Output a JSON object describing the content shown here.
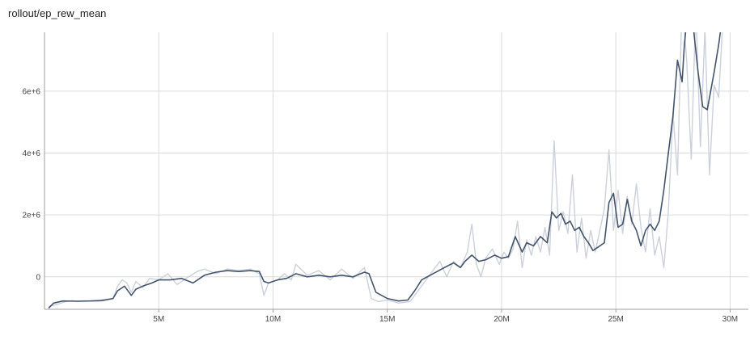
{
  "chart_data": {
    "type": "line",
    "title": "rollout/ep_rew_mean",
    "xlabel": "",
    "ylabel": "",
    "xlim": [
      0,
      30800000
    ],
    "ylim": [
      -1050000,
      7900000
    ],
    "x_ticks": [
      {
        "value": 5000000,
        "label": "5M"
      },
      {
        "value": 10000000,
        "label": "10M"
      },
      {
        "value": 15000000,
        "label": "15M"
      },
      {
        "value": 20000000,
        "label": "20M"
      },
      {
        "value": 25000000,
        "label": "25M"
      },
      {
        "value": 30000000,
        "label": "30M"
      }
    ],
    "y_ticks": [
      {
        "value": 0,
        "label": "0"
      },
      {
        "value": 2000000,
        "label": "2e+6"
      },
      {
        "value": 4000000,
        "label": "4e+6"
      },
      {
        "value": 6000000,
        "label": "6e+6"
      }
    ],
    "grid": true,
    "series": [
      {
        "color": "#cbd0db",
        "role": "raw",
        "x": [
          200000,
          500000,
          1000000,
          2000000,
          3000000,
          3200000,
          3400000,
          3600000,
          3800000,
          4000000,
          4300000,
          4600000,
          5000000,
          5400000,
          5800000,
          6200000,
          6700000,
          7000000,
          7500000,
          8000000,
          8500000,
          9000000,
          9400000,
          9600000,
          9800000,
          10200000,
          10500000,
          10800000,
          11000000,
          11500000,
          12000000,
          12500000,
          13000000,
          13500000,
          14000000,
          14300000,
          14600000,
          15000000,
          15500000,
          16000000,
          16400000,
          16700000,
          17000000,
          17300000,
          17600000,
          17900000,
          18200000,
          18500000,
          18700000,
          18900000,
          19100000,
          19300000,
          19600000,
          19900000,
          20100000,
          20300000,
          20500000,
          20700000,
          20900000,
          21100000,
          21300000,
          21500000,
          21700000,
          21900000,
          22100000,
          22300000,
          22500000,
          22700000,
          22900000,
          23100000,
          23300000,
          23500000,
          23700000,
          23900000,
          24100000,
          24300000,
          24500000,
          24700000,
          24900000,
          25100000,
          25300000,
          25500000,
          25700000,
          25900000,
          26100000,
          26300000,
          26500000,
          26700000,
          26900000,
          27100000,
          27300000,
          27500000,
          27700000,
          27900000,
          28100000,
          28300000,
          28500000,
          28700000,
          28900000,
          29100000,
          29300000,
          29500000,
          29700000
        ],
        "y": [
          -950000,
          -900000,
          -780000,
          -780000,
          -700000,
          -300000,
          -100000,
          -200000,
          -500000,
          -150000,
          -350000,
          -50000,
          -100000,
          100000,
          -250000,
          -50000,
          180000,
          250000,
          100000,
          250000,
          200000,
          250000,
          100000,
          -600000,
          -200000,
          -100000,
          100000,
          -100000,
          400000,
          50000,
          200000,
          -100000,
          250000,
          -50000,
          300000,
          -700000,
          -800000,
          -750000,
          -850000,
          -800000,
          -400000,
          -100000,
          200000,
          500000,
          0,
          500000,
          300000,
          800000,
          1700000,
          400000,
          0,
          600000,
          900000,
          400000,
          800000,
          600000,
          900000,
          1800000,
          300000,
          1200000,
          700000,
          1300000,
          800000,
          1600000,
          700000,
          4400000,
          1500000,
          2100000,
          1400000,
          3300000,
          800000,
          1900000,
          600000,
          1500000,
          800000,
          1500000,
          2200000,
          4100000,
          1500000,
          2800000,
          1400000,
          2600000,
          1700000,
          3000000,
          1600000,
          800000,
          2200000,
          700000,
          1300000,
          300000,
          2100000,
          5300000,
          3300000,
          9000000,
          7000000,
          3800000,
          8700000,
          4200000,
          8000000,
          3300000,
          6200000,
          5800000,
          8500000
        ]
      },
      {
        "color": "#44546b",
        "role": "smoothed",
        "x": [
          200000,
          400000,
          800000,
          1500000,
          2500000,
          3000000,
          3200000,
          3500000,
          3800000,
          4000000,
          4300000,
          4700000,
          5000000,
          5500000,
          6000000,
          6500000,
          7000000,
          7500000,
          8000000,
          8500000,
          9000000,
          9400000,
          9600000,
          9800000,
          10200000,
          10600000,
          11000000,
          11500000,
          12000000,
          12500000,
          13000000,
          13500000,
          14000000,
          14200000,
          14500000,
          15000000,
          15500000,
          15900000,
          16200000,
          16500000,
          17000000,
          17500000,
          17900000,
          18200000,
          18400000,
          18700000,
          19000000,
          19300000,
          19700000,
          20000000,
          20300000,
          20600000,
          20900000,
          21100000,
          21400000,
          21700000,
          22000000,
          22200000,
          22400000,
          22600000,
          22800000,
          23000000,
          23200000,
          23400000,
          23600000,
          23800000,
          24000000,
          24200000,
          24500000,
          24700000,
          24900000,
          25100000,
          25300000,
          25500000,
          25700000,
          25900000,
          26100000,
          26300000,
          26500000,
          26700000,
          26900000,
          27100000,
          27300000,
          27500000,
          27700000,
          27900000,
          28000000,
          28200000,
          28400000,
          28600000,
          28800000,
          29000000,
          29100000,
          29300000,
          29500000,
          29700000
        ],
        "y": [
          -1000000,
          -850000,
          -780000,
          -790000,
          -770000,
          -700000,
          -450000,
          -300000,
          -600000,
          -400000,
          -300000,
          -200000,
          -100000,
          -100000,
          -50000,
          -200000,
          50000,
          150000,
          200000,
          170000,
          200000,
          170000,
          -150000,
          -200000,
          -100000,
          -50000,
          100000,
          0,
          50000,
          0,
          50000,
          0,
          150000,
          100000,
          -500000,
          -700000,
          -780000,
          -750000,
          -450000,
          -100000,
          100000,
          300000,
          450000,
          300000,
          500000,
          700000,
          500000,
          550000,
          700000,
          600000,
          650000,
          1300000,
          800000,
          1100000,
          1000000,
          1300000,
          1100000,
          2100000,
          1900000,
          2050000,
          1700000,
          1800000,
          1500000,
          1600000,
          1300000,
          1100000,
          850000,
          950000,
          1100000,
          2400000,
          2700000,
          1600000,
          1700000,
          2500000,
          1800000,
          1500000,
          1000000,
          1500000,
          1700000,
          1500000,
          1800000,
          2800000,
          4000000,
          5200000,
          7000000,
          6300000,
          7500000,
          9000000,
          8000000,
          6600000,
          5500000,
          5400000,
          5800000,
          6600000,
          7500000,
          8600000
        ]
      }
    ]
  }
}
